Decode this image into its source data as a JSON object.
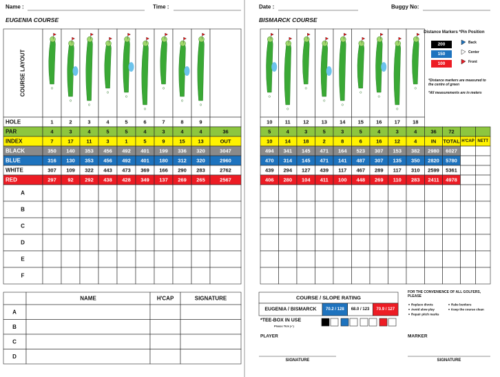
{
  "left": {
    "name_label": "Name :",
    "time_label": "Time :",
    "course": "EUGENIA COURSE",
    "layout_label": "COURSE LAYOUT",
    "rows": [
      {
        "label": "HOLE",
        "cells": [
          1,
          2,
          3,
          4,
          5,
          6,
          7,
          8,
          9
        ]
      },
      {
        "label": "PAR",
        "cells": [
          4,
          3,
          4,
          5,
          5,
          4,
          3,
          4,
          4,
          36
        ]
      },
      {
        "label": "INDEX",
        "cells": [
          7,
          17,
          11,
          3,
          1,
          5,
          9,
          15,
          13,
          "OUT"
        ]
      },
      {
        "label": "BLACK",
        "cells": [
          350,
          140,
          353,
          456,
          492,
          401,
          199,
          336,
          320,
          3047
        ]
      },
      {
        "label": "BLUE",
        "cells": [
          316,
          130,
          353,
          456,
          492,
          401,
          180,
          312,
          320,
          2960
        ]
      },
      {
        "label": "WHITE",
        "cells": [
          307,
          109,
          322,
          443,
          473,
          369,
          166,
          290,
          283,
          2762
        ]
      },
      {
        "label": "RED",
        "cells": [
          297,
          92,
          292,
          438,
          428,
          349,
          137,
          269,
          265,
          2567
        ]
      }
    ],
    "player_rows": [
      "A",
      "B",
      "C",
      "D",
      "E",
      "F"
    ],
    "signature_table": {
      "headers": [
        "NAME",
        "H'CAP",
        "SIGNATURE"
      ],
      "rows": [
        "A",
        "B",
        "C",
        "D"
      ]
    }
  },
  "right": {
    "date_label": "Date :",
    "buggy_label": "Buggy No:",
    "course": "BISMARCK COURSE",
    "legend": {
      "distance_title": "Distance Markers",
      "markers": [
        200,
        150,
        100
      ],
      "pin_title": "*Pin Position",
      "pins": [
        "Back",
        "Center",
        "Front"
      ],
      "notes": [
        "*Distance markers are measured to the centre of green",
        "*All measurements are in meters"
      ]
    },
    "rows": [
      {
        "cells": [
          10,
          11,
          12,
          13,
          14,
          15,
          16,
          17,
          18
        ]
      },
      {
        "cells": [
          5,
          4,
          3,
          5,
          3,
          5,
          4,
          3,
          4,
          36,
          72
        ]
      },
      {
        "cells": [
          10,
          14,
          18,
          2,
          8,
          6,
          16,
          12,
          4,
          "IN",
          "TOTAL",
          "H'CAP",
          "NETT"
        ]
      },
      {
        "cells": [
          494,
          341,
          145,
          471,
          164,
          523,
          307,
          153,
          382,
          2980,
          6027
        ]
      },
      {
        "cells": [
          470,
          314,
          145,
          471,
          141,
          487,
          307,
          135,
          350,
          2820,
          5780
        ]
      },
      {
        "cells": [
          439,
          294,
          127,
          439,
          117,
          467,
          289,
          117,
          310,
          2599,
          5361
        ]
      },
      {
        "cells": [
          406,
          280,
          104,
          411,
          100,
          448,
          269,
          110,
          283,
          2411,
          4978
        ]
      }
    ],
    "rating": {
      "title": "COURSE / SLOPE RATING",
      "course": "EUGENIA / BISMARCK",
      "values": [
        "70.2 / 128",
        "68.0 / 123",
        "70.9 / 127"
      ]
    },
    "tee_box": {
      "title": "*TEE-BOX IN USE",
      "hint": "Please Tick (✓)"
    },
    "convenience": {
      "title": "FOR THE CONVENIENCE OF ALL GOLFERS, PLEASE",
      "items": [
        "Replace divots",
        "Avoid slow play",
        "Repair pitch marks",
        "Rake bunkers",
        "Keep the course clean"
      ]
    },
    "player_label": "PLAYER",
    "marker_label": "MARKER",
    "signature_labels": [
      "SIGNATURE",
      "SIGNATURE"
    ]
  }
}
